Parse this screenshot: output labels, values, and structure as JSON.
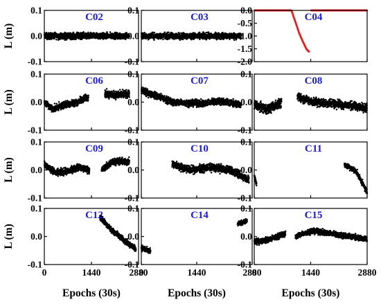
{
  "chart_data": {
    "type": "scatter",
    "xlabel": "Epochs (30s)",
    "ylabel": "L (m)",
    "xlim": [
      0,
      2880
    ],
    "xticks": [
      0,
      1440,
      2880
    ],
    "title_color": "#1a1adb",
    "default_point_color": "#000000",
    "panels": [
      {
        "title": "C02",
        "ylim": [
          -0.1,
          0.1
        ],
        "yticks": [
          -0.1,
          0.0,
          0.1
        ],
        "segments": [
          {
            "x0": 0,
            "x1": 2600,
            "shape": "noise",
            "amp": 0.018
          }
        ]
      },
      {
        "title": "C03",
        "ylim": [
          -0.1,
          0.1
        ],
        "yticks": [
          -0.1,
          0.0,
          0.1
        ],
        "segments": [
          {
            "x0": 0,
            "x1": 2600,
            "shape": "noise",
            "amp": 0.018
          }
        ]
      },
      {
        "title": "C04",
        "ylim": [
          -2.0,
          0.0
        ],
        "yticks": [
          -2.0,
          -1.5,
          -1.0,
          -0.5,
          0.0
        ],
        "color": "#e81d1d",
        "segments": [
          {
            "x0": 0,
            "x1": 950,
            "shape": "noise",
            "amp": 0.005
          },
          {
            "x0": 950,
            "x1": 1400,
            "shape": "curve",
            "points": [
              [
                950,
                0.0
              ],
              [
                1050,
                -0.45
              ],
              [
                1150,
                -0.9
              ],
              [
                1250,
                -1.25
              ],
              [
                1330,
                -1.5
              ],
              [
                1400,
                -1.62
              ]
            ],
            "amp": 0.02
          },
          {
            "x0": 1450,
            "x1": 2880,
            "shape": "noise",
            "amp": 0.005
          }
        ]
      },
      {
        "title": "C06",
        "ylim": [
          -0.1,
          0.1
        ],
        "yticks": [
          -0.1,
          0.0,
          0.1
        ],
        "segments": [
          {
            "x0": 0,
            "x1": 1350,
            "shape": "curve",
            "points": [
              [
                0,
                0.0
              ],
              [
                250,
                -0.025
              ],
              [
                600,
                -0.01
              ],
              [
                1000,
                0.0
              ],
              [
                1350,
                0.02
              ]
            ],
            "amp": 0.018
          },
          {
            "x0": 1850,
            "x1": 2600,
            "shape": "curve",
            "points": [
              [
                1850,
                0.03
              ],
              [
                2200,
                0.025
              ],
              [
                2600,
                0.03
              ]
            ],
            "amp": 0.02
          }
        ]
      },
      {
        "title": "C07",
        "ylim": [
          -0.1,
          0.1
        ],
        "yticks": [
          -0.1,
          0.0,
          0.1
        ],
        "segments": [
          {
            "x0": 0,
            "x1": 2600,
            "shape": "curve",
            "points": [
              [
                0,
                0.04
              ],
              [
                350,
                0.025
              ],
              [
                800,
                0.0
              ],
              [
                1600,
                -0.005
              ],
              [
                2000,
                0.005
              ],
              [
                2600,
                -0.01
              ]
            ],
            "amp": 0.018
          }
        ]
      },
      {
        "title": "C08",
        "ylim": [
          -0.1,
          0.1
        ],
        "yticks": [
          -0.1,
          0.0,
          0.1
        ],
        "segments": [
          {
            "x0": 0,
            "x1": 700,
            "shape": "curve",
            "points": [
              [
                0,
                -0.01
              ],
              [
                350,
                -0.025
              ],
              [
                700,
                0.0
              ]
            ],
            "amp": 0.025
          },
          {
            "x0": 1100,
            "x1": 2880,
            "shape": "curve",
            "points": [
              [
                1100,
                0.02
              ],
              [
                1500,
                0.0
              ],
              [
                2000,
                -0.005
              ],
              [
                2880,
                -0.02
              ]
            ],
            "amp": 0.022
          }
        ]
      },
      {
        "title": "C09",
        "ylim": [
          -0.1,
          0.1
        ],
        "yticks": [
          -0.1,
          0.0,
          0.1
        ],
        "segments": [
          {
            "x0": 0,
            "x1": 1380,
            "shape": "curve",
            "points": [
              [
                0,
                0.02
              ],
              [
                350,
                -0.01
              ],
              [
                700,
                -0.005
              ],
              [
                1050,
                0.01
              ],
              [
                1380,
                0.0
              ]
            ],
            "amp": 0.018
          },
          {
            "x0": 1750,
            "x1": 2600,
            "shape": "curve",
            "points": [
              [
                1750,
                0.0
              ],
              [
                2100,
                0.03
              ],
              [
                2600,
                0.03
              ]
            ],
            "amp": 0.018
          }
        ]
      },
      {
        "title": "C10",
        "ylim": [
          -0.1,
          0.1
        ],
        "yticks": [
          -0.1,
          0.0,
          0.1
        ],
        "segments": [
          {
            "x0": 800,
            "x1": 2800,
            "shape": "curve",
            "points": [
              [
                800,
                0.02
              ],
              [
                1300,
                0.0
              ],
              [
                1800,
                0.01
              ],
              [
                2300,
                0.0
              ],
              [
                2800,
                -0.035
              ]
            ],
            "amp": 0.02
          }
        ]
      },
      {
        "title": "C11",
        "ylim": [
          -0.1,
          0.1
        ],
        "yticks": [
          -0.1,
          0.0,
          0.1
        ],
        "segments": [
          {
            "x0": 0,
            "x1": 60,
            "shape": "curve",
            "points": [
              [
                0,
                -0.02
              ],
              [
                60,
                -0.05
              ]
            ],
            "amp": 0.01
          },
          {
            "x0": 2300,
            "x1": 2880,
            "shape": "curve",
            "points": [
              [
                2300,
                0.02
              ],
              [
                2600,
                -0.005
              ],
              [
                2880,
                -0.08
              ]
            ],
            "amp": 0.015
          }
        ]
      },
      {
        "title": "C12",
        "ylim": [
          -0.1,
          0.1
        ],
        "yticks": [
          -0.1,
          0.0,
          0.1
        ],
        "segments": [
          {
            "x0": 1700,
            "x1": 2800,
            "shape": "curve",
            "points": [
              [
                1700,
                0.07
              ],
              [
                2000,
                0.03
              ],
              [
                2400,
                -0.01
              ],
              [
                2800,
                -0.045
              ]
            ],
            "amp": 0.015
          }
        ]
      },
      {
        "title": "C14",
        "ylim": [
          -0.1,
          0.1
        ],
        "yticks": [
          -0.1,
          0.0,
          0.1
        ],
        "segments": [
          {
            "x0": 0,
            "x1": 240,
            "shape": "curve",
            "points": [
              [
                0,
                -0.04
              ],
              [
                240,
                -0.055
              ]
            ],
            "amp": 0.015
          },
          {
            "x0": 2500,
            "x1": 2750,
            "shape": "curve",
            "points": [
              [
                2500,
                0.045
              ],
              [
                2750,
                0.055
              ]
            ],
            "amp": 0.012
          }
        ]
      },
      {
        "title": "C15",
        "ylim": [
          -0.1,
          0.1
        ],
        "yticks": [
          -0.1,
          0.0,
          0.1
        ],
        "segments": [
          {
            "x0": 0,
            "x1": 800,
            "shape": "curve",
            "points": [
              [
                0,
                -0.02
              ],
              [
                400,
                -0.01
              ],
              [
                800,
                0.01
              ]
            ],
            "amp": 0.015
          },
          {
            "x0": 1050,
            "x1": 2880,
            "shape": "curve",
            "points": [
              [
                1050,
                0.0
              ],
              [
                1450,
                0.02
              ],
              [
                2000,
                0.01
              ],
              [
                2880,
                -0.01
              ]
            ],
            "amp": 0.015
          }
        ]
      }
    ]
  }
}
